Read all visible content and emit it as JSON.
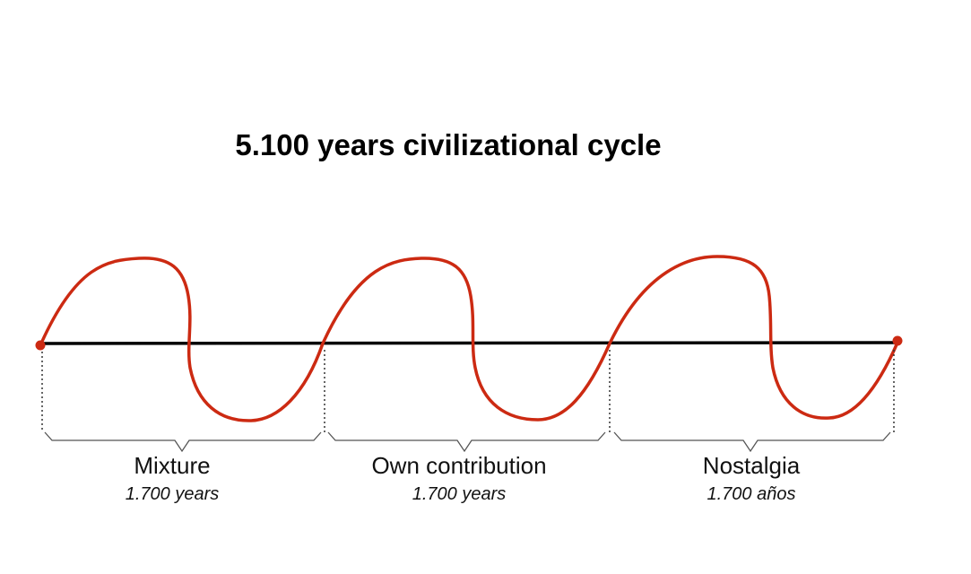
{
  "title": "5.100 years civilizational cycle",
  "colors": {
    "wave": "#cc2a12",
    "axis": "#000000",
    "dot": "#cc2a12",
    "bracket": "#555555"
  },
  "segments": [
    {
      "name": "Mixture",
      "duration": "1.700 years"
    },
    {
      "name": "Own contribution",
      "duration": "1.700 years"
    },
    {
      "name": "Nostalgia",
      "duration": "1.700 años"
    }
  ]
}
